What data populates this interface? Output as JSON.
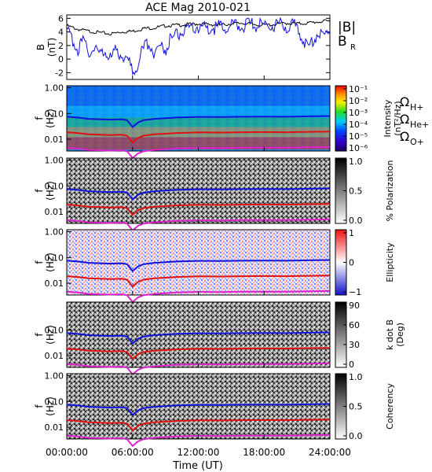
{
  "chart_data": [
    {
      "type": "line",
      "title": "ACE Mag 2010-021",
      "ylabel": "B",
      "yunit": "(nT)",
      "ylim": [
        -3,
        6.5
      ],
      "yticks": [
        -2,
        0,
        2,
        4,
        6
      ],
      "xlim": [
        0,
        24
      ],
      "series": [
        {
          "name": "|B|",
          "color": "#000000",
          "x": [
            0,
            1,
            2,
            3,
            4,
            5,
            6,
            7,
            8,
            9,
            10,
            11,
            12,
            13,
            14,
            15,
            16,
            17,
            18,
            19,
            20,
            21,
            22,
            23,
            24
          ],
          "values": [
            4.9,
            4.4,
            4.1,
            3.9,
            3.7,
            4.0,
            4.1,
            4.5,
            4.6,
            4.9,
            5.0,
            5.1,
            5.2,
            5.1,
            5.0,
            5.2,
            5.3,
            5.1,
            5.0,
            5.1,
            5.3,
            5.2,
            5.3,
            5.5,
            5.6
          ]
        },
        {
          "name": "B",
          "sub": "R",
          "color": "#1111dd",
          "x": [
            0,
            0.5,
            1,
            1.5,
            2,
            2.5,
            3,
            3.5,
            4,
            4.5,
            5,
            5.5,
            6,
            6.5,
            7,
            7.5,
            8,
            8.5,
            9,
            9.5,
            10,
            10.5,
            11,
            11.5,
            12,
            13,
            14,
            15,
            16,
            17,
            18,
            19,
            20,
            21,
            22,
            22.5,
            23,
            23.5,
            24
          ],
          "values": [
            4.0,
            3.0,
            1.5,
            2.5,
            1.0,
            2.0,
            0.5,
            1.5,
            0.0,
            1.2,
            0.8,
            0.2,
            -1.8,
            -0.5,
            1.5,
            2.5,
            1.0,
            2.0,
            1.5,
            3.0,
            3.5,
            4.0,
            4.0,
            4.5,
            4.8,
            4.5,
            4.7,
            4.8,
            5.0,
            5.0,
            5.0,
            5.1,
            4.9,
            4.8,
            1.5,
            3.0,
            4.0,
            3.5,
            4.5
          ]
        }
      ]
    },
    {
      "type": "heatmap",
      "ylabel": "f",
      "yunit": "(Hz)",
      "yscale": "log",
      "ylim": [
        0.0035,
        1.2
      ],
      "yticks": [
        "1.00",
        "0.10",
        "0.01"
      ],
      "colorbar": {
        "label": "Intensity",
        "unit": "(nT²/Hz)",
        "scale": "log",
        "ticks": [
          "10⁻¹",
          "10⁻²",
          "10⁻³",
          "10⁻⁴",
          "10⁻⁵",
          "10⁻⁶"
        ]
      },
      "legend": [
        {
          "label": "Ω",
          "sub": "H+",
          "color": "#1111dd"
        },
        {
          "label": "Ω",
          "sub": "He+",
          "color": "#e01111"
        },
        {
          "label": "Ω",
          "sub": "O+",
          "color": "#dd22cc"
        }
      ]
    },
    {
      "type": "heatmap",
      "ylabel": "f",
      "yunit": "(Hz)",
      "yscale": "log",
      "yticks": [
        "1.00",
        "0.10",
        "0.01"
      ],
      "colorbar": {
        "label": "% Polarization",
        "ticks": [
          "1.0",
          "0.5",
          "0.0"
        ]
      }
    },
    {
      "type": "heatmap",
      "ylabel": "f",
      "yunit": "(Hz)",
      "yscale": "log",
      "yticks": [
        "1.00",
        "0.10",
        "0.01"
      ],
      "colorbar": {
        "label": "Ellipticity",
        "ticks": [
          "1",
          "0",
          "−1"
        ]
      }
    },
    {
      "type": "heatmap",
      "ylabel": "f",
      "yunit": "(Hz)",
      "yscale": "log",
      "yticks": [
        "0.10",
        "0.01"
      ],
      "colorbar": {
        "label": "k dot B",
        "unit": "(Deg)",
        "ticks": [
          "90",
          "60",
          "30",
          "0"
        ]
      }
    },
    {
      "type": "heatmap",
      "ylabel": "f",
      "yunit": "(Hz)",
      "yscale": "log",
      "yticks": [
        "1.00",
        "0.10",
        "0.01"
      ],
      "colorbar": {
        "label": "Coherency",
        "ticks": [
          "1.0",
          "0.5",
          "0.0"
        ]
      }
    }
  ],
  "gyro_curves": {
    "x_hours": [
      0,
      1,
      2,
      3,
      4,
      5,
      5.5,
      6,
      6.5,
      7,
      8,
      9,
      10,
      12,
      14,
      16,
      18,
      20,
      22,
      24
    ],
    "H+": [
      0.075,
      0.07,
      0.062,
      0.06,
      0.058,
      0.06,
      0.055,
      0.03,
      0.045,
      0.055,
      0.062,
      0.066,
      0.07,
      0.074,
      0.073,
      0.075,
      0.076,
      0.075,
      0.078,
      0.08
    ]
  },
  "x_axis": {
    "label": "Time (UT)",
    "ticks": [
      "00:00:00",
      "06:00:00",
      "12:00:00",
      "18:00:00",
      "24:00:00"
    ]
  }
}
